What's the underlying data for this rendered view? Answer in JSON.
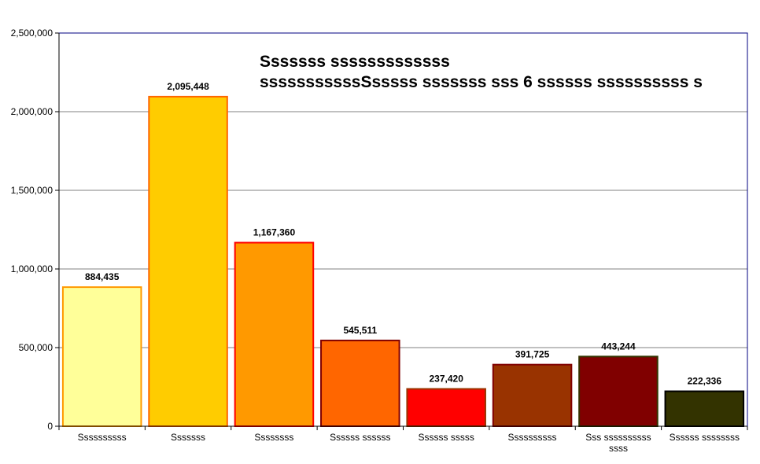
{
  "chart_data": {
    "type": "bar",
    "title_lines": [
      "Sssssss sssssssssssss",
      "sssssssssssSsssss sssssss sss 6 ssssss ssssssssss s"
    ],
    "categories": [
      "Ssssssssss",
      "Sssssss",
      "Ssssssss",
      "Ssssss ssssss",
      "Ssssss sssss",
      "Ssssssssss",
      [
        "Sss ssssssssss",
        "ssss"
      ],
      "Ssssss ssssssss"
    ],
    "values": [
      884435,
      2095448,
      1167360,
      545511,
      237420,
      391725,
      443244,
      222336
    ],
    "value_labels": [
      "884,435",
      "2,095,448",
      "1,167,360",
      "545,511",
      "237,420",
      "391,725",
      "443,244",
      "222,336"
    ],
    "fill_colors": [
      "#ffff99",
      "#ffcc00",
      "#ff9900",
      "#ff6600",
      "#ff0000",
      "#993300",
      "#800000",
      "#333300"
    ],
    "border_colors": [
      "#ff9900",
      "#ff6600",
      "#ff0000",
      "#800000",
      "#993300",
      "#800000",
      "#333300",
      "#000000"
    ],
    "ylim": [
      0,
      2500000
    ],
    "yticks": [
      0,
      500000,
      1000000,
      1500000,
      2000000,
      2500000
    ],
    "ytick_labels": [
      "0",
      "500,000",
      "1,000,000",
      "1,500,000",
      "2,000,000",
      "2,500,000"
    ],
    "grid": true,
    "plot_border_color": "#000080",
    "gridline_color": "#808080"
  }
}
